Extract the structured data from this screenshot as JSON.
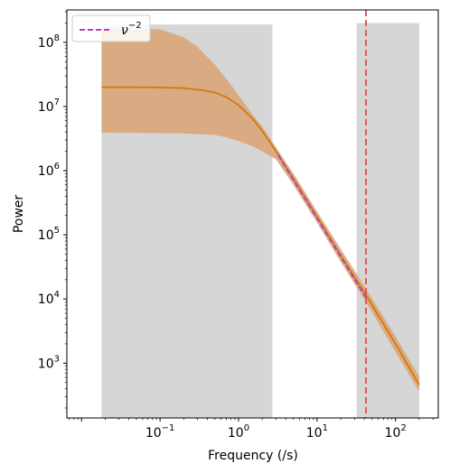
{
  "chart_data": {
    "type": "line",
    "title": "",
    "xlabel": "Frequency (/s)",
    "ylabel": "Power",
    "xscale": "log",
    "yscale": "log",
    "xlim": [
      0.0065,
      350
    ],
    "ylim": [
      140,
      320000000
    ],
    "grid": false,
    "legend": {
      "placement": "top-left",
      "entries": [
        {
          "label": "ν⁻²",
          "style": "dashed",
          "color": "#b83dba"
        }
      ]
    },
    "xticks": [
      {
        "value": 0.1,
        "base": "10",
        "exp": "−1"
      },
      {
        "value": 1,
        "base": "10",
        "exp": "0"
      },
      {
        "value": 10,
        "base": "10",
        "exp": "1"
      },
      {
        "value": 100,
        "base": "10",
        "exp": "2"
      }
    ],
    "yticks": [
      {
        "value": 1000,
        "base": "10",
        "exp": "3"
      },
      {
        "value": 10000,
        "base": "10",
        "exp": "4"
      },
      {
        "value": 100000,
        "base": "10",
        "exp": "5"
      },
      {
        "value": 1000000,
        "base": "10",
        "exp": "6"
      },
      {
        "value": 10000000,
        "base": "10",
        "exp": "7"
      },
      {
        "value": 100000000,
        "base": "10",
        "exp": "8"
      }
    ],
    "shaded_regions": [
      {
        "x": [
          0.018,
          2.7
        ],
        "y": [
          140,
          190000000
        ],
        "color": "#d6d6d6"
      },
      {
        "x": [
          32,
          200
        ],
        "y": [
          140,
          200000000
        ],
        "color": "#d6d6d6"
      }
    ],
    "vertical_lines": [
      {
        "x": 42,
        "color": "#e8474c",
        "style": "dashed"
      }
    ],
    "series": [
      {
        "role": "model-median",
        "color": "#d17a0c",
        "x": [
          0.018,
          0.05,
          0.1,
          0.2,
          0.35,
          0.5,
          0.7,
          1,
          1.5,
          2,
          3,
          5,
          10,
          20,
          42,
          100,
          200
        ],
        "y": [
          20000000,
          20000000,
          19800000,
          19300000,
          18000000,
          16500000,
          14000000,
          10500000,
          6500000,
          4200000,
          2000000,
          750000,
          190000,
          48000,
          11500,
          2000,
          460
        ]
      },
      {
        "role": "model-band-upper",
        "color": "#daa97e",
        "x": [
          0.018,
          0.1,
          0.2,
          0.3,
          0.5,
          0.7,
          1,
          1.5,
          2,
          3,
          5,
          10,
          20,
          42,
          100,
          200
        ],
        "y": [
          160000000,
          160000000,
          120000000,
          85000000,
          45000000,
          27000000,
          15000000,
          7500000,
          4900000,
          2300000,
          900000,
          230000,
          60000,
          14500,
          2600,
          620
        ]
      },
      {
        "role": "model-band-lower",
        "color": "#daa97e",
        "x": [
          0.018,
          0.1,
          0.2,
          0.5,
          0.7,
          1,
          1.5,
          2,
          3,
          5,
          10,
          20,
          42,
          100,
          200
        ],
        "y": [
          3900000,
          3850000,
          3800000,
          3600000,
          3300000,
          2900000,
          2400000,
          2000000,
          1500000,
          600000,
          155000,
          38000,
          9000,
          1500,
          360
        ]
      },
      {
        "role": "power-law-reference",
        "name": "ν⁻²",
        "color": "#b83dba",
        "style": "dashed",
        "x": [
          3.2,
          42
        ],
        "y": [
          1750000,
          10500
        ]
      }
    ]
  }
}
